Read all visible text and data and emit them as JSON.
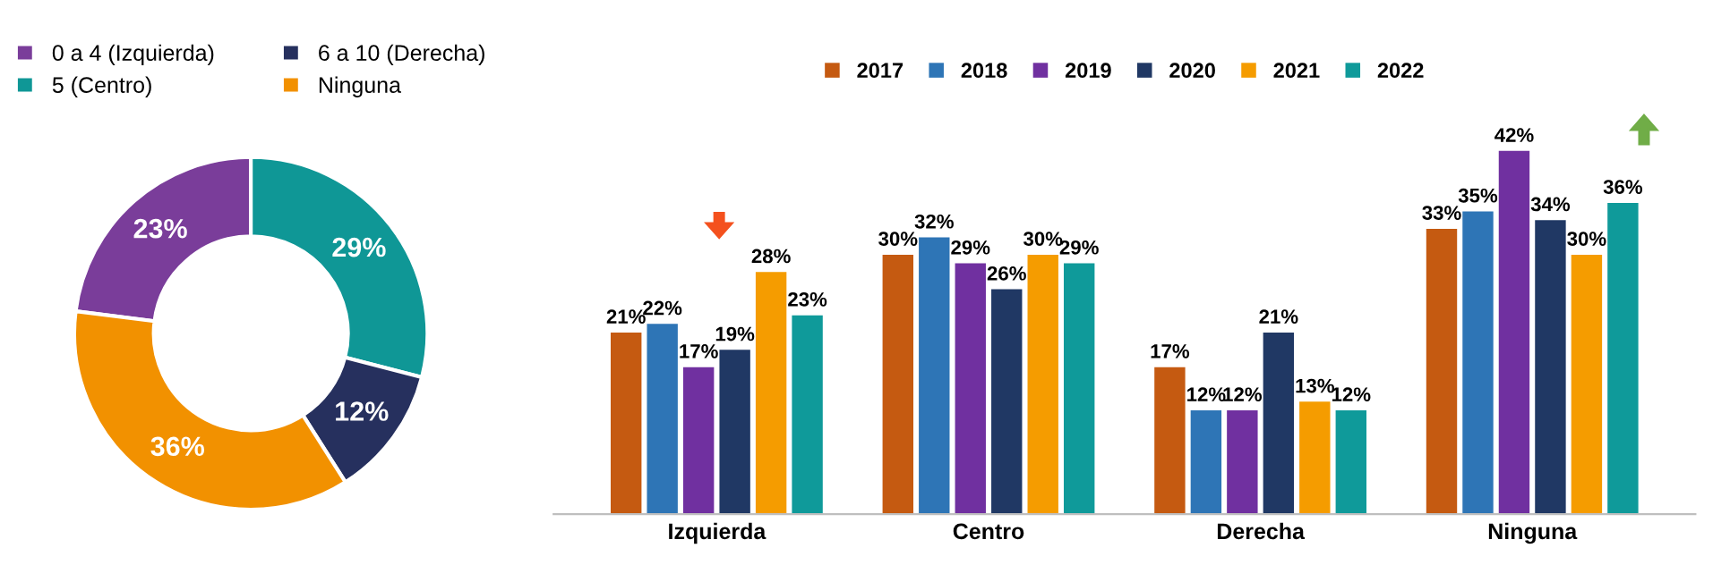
{
  "chart_data": [
    {
      "type": "donut",
      "categories": [
        "0 a 4 (Izquierda)",
        "5 (Centro)",
        "6 a 10 (Derecha)",
        "Ninguna"
      ],
      "values": [
        23,
        29,
        12,
        36
      ],
      "value_labels": [
        "23%",
        "29%",
        "12%",
        "36%"
      ],
      "colors": [
        "#7a3d9a",
        "#0f9796",
        "#26305e",
        "#f29100"
      ],
      "legend": "top"
    },
    {
      "type": "bar",
      "categories": [
        "Izquierda",
        "Centro",
        "Derecha",
        "Ninguna"
      ],
      "legend": "top",
      "series": [
        {
          "name": "2017",
          "color": "#c55a11",
          "values": [
            21,
            30,
            17,
            33
          ],
          "value_labels": [
            "21%",
            "30%",
            "17%",
            "33%"
          ]
        },
        {
          "name": "2018",
          "color": "#2e75b6",
          "values": [
            22,
            32,
            12,
            35
          ],
          "value_labels": [
            "22%",
            "32%",
            "12%",
            "35%"
          ]
        },
        {
          "name": "2019",
          "color": "#7030a0",
          "values": [
            17,
            29,
            12,
            42
          ],
          "value_labels": [
            "17%",
            "29%",
            "12%",
            "42%"
          ]
        },
        {
          "name": "2020",
          "color": "#203864",
          "values": [
            19,
            26,
            21,
            34
          ],
          "value_labels": [
            "19%",
            "26%",
            "21%",
            "34%"
          ]
        },
        {
          "name": "2021",
          "color": "#f59c00",
          "values": [
            28,
            30,
            13,
            30
          ],
          "value_labels": [
            "28%",
            "30%",
            "13%",
            "30%"
          ]
        },
        {
          "name": "2022",
          "color": "#0f9a9a",
          "values": [
            23,
            29,
            12,
            36
          ],
          "value_labels": [
            "23%",
            "29%",
            "12%",
            "36%"
          ]
        }
      ]
    }
  ]
}
